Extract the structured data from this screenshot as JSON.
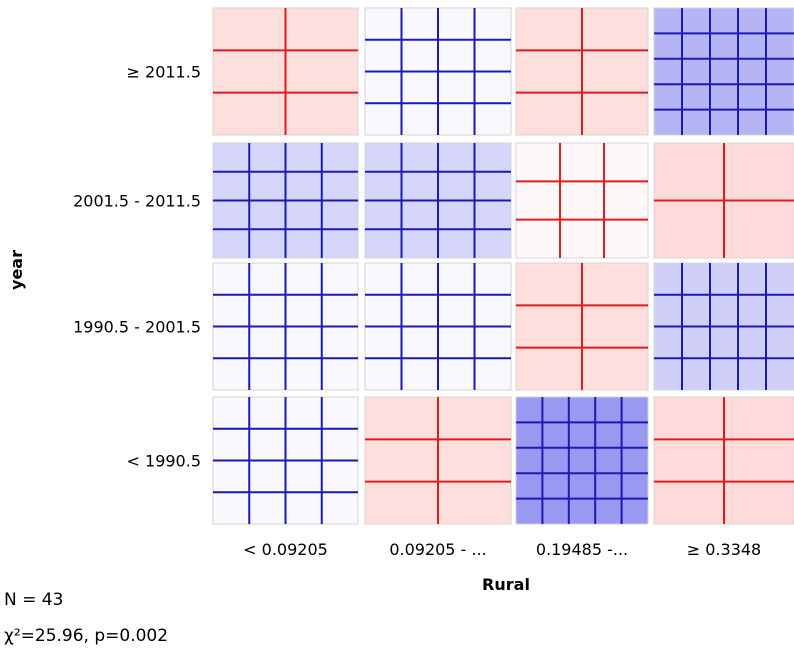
{
  "chart_data": {
    "type": "sieve",
    "xlabel": "Rural",
    "ylabel": "year",
    "x_categories": [
      "< 0.09205",
      "0.09205 - ...",
      "0.19485 -...",
      "≥ 0.3348"
    ],
    "y_categories": [
      "≥ 2011.5",
      "2001.5 - 2011.5",
      "1990.5 - 2001.5",
      "< 1990.5"
    ],
    "cells": [
      [
        {
          "direction": "under",
          "intensity": 0.45,
          "v_lines": 1,
          "h_lines": 2
        },
        {
          "direction": "over",
          "intensity": 0.05,
          "v_lines": 3,
          "h_lines": 3
        },
        {
          "direction": "under",
          "intensity": 0.45,
          "v_lines": 1,
          "h_lines": 2
        },
        {
          "direction": "over",
          "intensity": 0.55,
          "v_lines": 4,
          "h_lines": 4
        }
      ],
      [
        {
          "direction": "over",
          "intensity": 0.3,
          "v_lines": 3,
          "h_lines": 3
        },
        {
          "direction": "over",
          "intensity": 0.3,
          "v_lines": 3,
          "h_lines": 3
        },
        {
          "direction": "under",
          "intensity": 0.1,
          "v_lines": 2,
          "h_lines": 2
        },
        {
          "direction": "under",
          "intensity": 0.5,
          "v_lines": 1,
          "h_lines": 1
        }
      ],
      [
        {
          "direction": "over",
          "intensity": 0.05,
          "v_lines": 3,
          "h_lines": 3
        },
        {
          "direction": "over",
          "intensity": 0.05,
          "v_lines": 3,
          "h_lines": 3
        },
        {
          "direction": "under",
          "intensity": 0.45,
          "v_lines": 1,
          "h_lines": 2
        },
        {
          "direction": "over",
          "intensity": 0.35,
          "v_lines": 4,
          "h_lines": 3
        }
      ],
      [
        {
          "direction": "over",
          "intensity": 0.05,
          "v_lines": 3,
          "h_lines": 3
        },
        {
          "direction": "under",
          "intensity": 0.45,
          "v_lines": 1,
          "h_lines": 2
        },
        {
          "direction": "over",
          "intensity": 0.75,
          "v_lines": 4,
          "h_lines": 4
        },
        {
          "direction": "under",
          "intensity": 0.5,
          "v_lines": 1,
          "h_lines": 2
        }
      ]
    ],
    "colors": {
      "over": "#1a1ab4",
      "under": "#dc1e1e",
      "over_fill": "#7777ee",
      "under_fill": "#ffb5b5"
    }
  },
  "stats": {
    "n_text": "N = 43",
    "chi_text": "χ²=25.96, p=0.002"
  }
}
